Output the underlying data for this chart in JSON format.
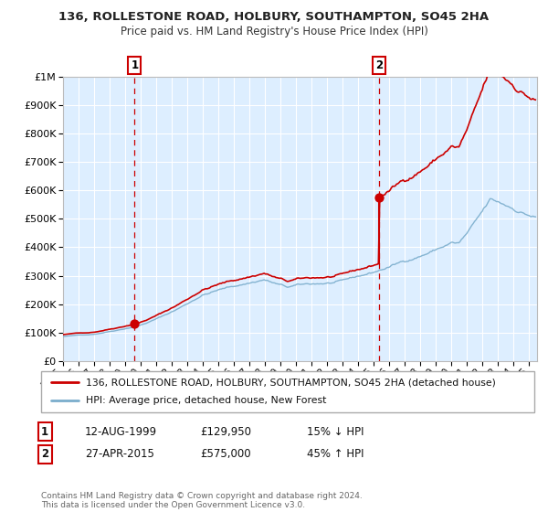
{
  "title": "136, ROLLESTONE ROAD, HOLBURY, SOUTHAMPTON, SO45 2HA",
  "subtitle": "Price paid vs. HM Land Registry's House Price Index (HPI)",
  "legend_line1": "136, ROLLESTONE ROAD, HOLBURY, SOUTHAMPTON, SO45 2HA (detached house)",
  "legend_line2": "HPI: Average price, detached house, New Forest",
  "purchase1_date": 1999.61,
  "purchase1_price": 129950,
  "purchase1_label": "1",
  "purchase1_year_str": "12-AUG-1999",
  "purchase1_price_str": "£129,950",
  "purchase1_hpi_str": "15% ↓ HPI",
  "purchase2_date": 2015.32,
  "purchase2_price": 575000,
  "purchase2_label": "2",
  "purchase2_year_str": "27-APR-2015",
  "purchase2_price_str": "£575,000",
  "purchase2_hpi_str": "45% ↑ HPI",
  "red_color": "#cc0000",
  "blue_color": "#7aadcc",
  "bg_color": "#ddeeff",
  "ylim": [
    0,
    1000000
  ],
  "xlim_start": 1995.0,
  "xlim_end": 2025.5,
  "footer": "Contains HM Land Registry data © Crown copyright and database right 2024.\nThis data is licensed under the Open Government Licence v3.0."
}
